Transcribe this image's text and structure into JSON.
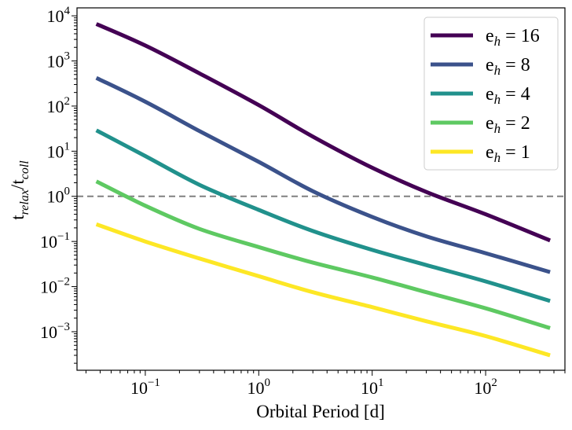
{
  "chart_data": {
    "type": "line",
    "xscale": "log",
    "yscale": "log",
    "xlabel": "Orbital Period [d]",
    "ylabel_main": "t",
    "ylabel_sub1": "relax",
    "ylabel_mid": "/t",
    "ylabel_sub2": "coll",
    "xlim": [
      0.025,
      500
    ],
    "ylim": [
      0.00014,
      15000
    ],
    "x_ticks": [
      {
        "value": 0.1,
        "base": "10",
        "exp": "−1"
      },
      {
        "value": 1,
        "base": "10",
        "exp": "0"
      },
      {
        "value": 10,
        "base": "10",
        "exp": "1"
      },
      {
        "value": 100,
        "base": "10",
        "exp": "2"
      }
    ],
    "y_ticks": [
      {
        "value": 0.001,
        "base": "10",
        "exp": "−3"
      },
      {
        "value": 0.01,
        "base": "10",
        "exp": "−2"
      },
      {
        "value": 0.1,
        "base": "10",
        "exp": "−1"
      },
      {
        "value": 1,
        "base": "10",
        "exp": "0"
      },
      {
        "value": 10,
        "base": "10",
        "exp": "1"
      },
      {
        "value": 100,
        "base": "10",
        "exp": "2"
      },
      {
        "value": 1000,
        "base": "10",
        "exp": "3"
      },
      {
        "value": 10000,
        "base": "10",
        "exp": "4"
      }
    ],
    "reference_line": {
      "y": 1,
      "style": "dashed",
      "color": "#808080"
    },
    "legend_position": "upper right",
    "series": [
      {
        "label_main": "e",
        "label_sub": "h",
        "label_value": "= 16",
        "color": "#440154",
        "points": [
          [
            0.037,
            6600
          ],
          [
            0.1,
            2200
          ],
          [
            0.3,
            530
          ],
          [
            1,
            105
          ],
          [
            3,
            21
          ],
          [
            10,
            4.3
          ],
          [
            30,
            1.25
          ],
          [
            100,
            0.4
          ],
          [
            370,
            0.105
          ]
        ]
      },
      {
        "label_main": "e",
        "label_sub": "h",
        "label_value": "= 8",
        "color": "#3b528b",
        "points": [
          [
            0.037,
            420
          ],
          [
            0.1,
            125
          ],
          [
            0.3,
            28
          ],
          [
            1,
            5.8
          ],
          [
            3,
            1.3
          ],
          [
            10,
            0.35
          ],
          [
            30,
            0.13
          ],
          [
            100,
            0.055
          ],
          [
            370,
            0.021
          ]
        ]
      },
      {
        "label_main": "e",
        "label_sub": "h",
        "label_value": "= 4",
        "color": "#21918c",
        "points": [
          [
            0.037,
            29
          ],
          [
            0.1,
            7.8
          ],
          [
            0.3,
            1.8
          ],
          [
            1,
            0.5
          ],
          [
            3,
            0.17
          ],
          [
            10,
            0.065
          ],
          [
            30,
            0.03
          ],
          [
            100,
            0.013
          ],
          [
            370,
            0.0048
          ]
        ]
      },
      {
        "label_main": "e",
        "label_sub": "h",
        "label_value": "= 2",
        "color": "#5ec962",
        "points": [
          [
            0.037,
            2.15
          ],
          [
            0.1,
            0.62
          ],
          [
            0.3,
            0.19
          ],
          [
            1,
            0.075
          ],
          [
            3,
            0.034
          ],
          [
            10,
            0.016
          ],
          [
            30,
            0.0075
          ],
          [
            100,
            0.0033
          ],
          [
            370,
            0.0012
          ]
        ]
      },
      {
        "label_main": "e",
        "label_sub": "h",
        "label_value": "= 1",
        "color": "#fde725",
        "points": [
          [
            0.037,
            0.24
          ],
          [
            0.1,
            0.1
          ],
          [
            0.3,
            0.042
          ],
          [
            1,
            0.017
          ],
          [
            3,
            0.0075
          ],
          [
            10,
            0.0035
          ],
          [
            30,
            0.0017
          ],
          [
            100,
            0.0008
          ],
          [
            370,
            0.0003
          ]
        ]
      }
    ]
  }
}
